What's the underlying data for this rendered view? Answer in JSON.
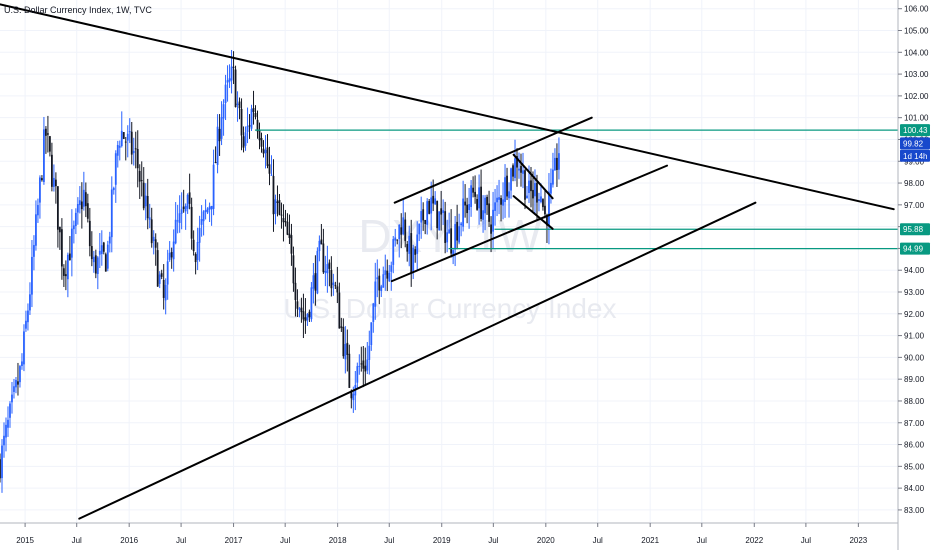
{
  "header": {
    "title": "U.S. Dollar Currency Index, 1W, TVC"
  },
  "watermark": {
    "symbol": "DXY, 1W",
    "name": "U.S. Dollar Currency Index"
  },
  "colors": {
    "candle_up": "#2962ff",
    "candle_down": "#131722",
    "level_line": "#089981",
    "price_badge": "#1848cc",
    "grid": "#f0f3fa",
    "trendline": "#000000"
  },
  "chart_data": {
    "type": "candlestick",
    "title": "U.S. Dollar Currency Index, 1W, TVC",
    "x_tick_labels": [
      "2015",
      "Jul",
      "2016",
      "Jul",
      "2017",
      "Jul",
      "2018",
      "Jul",
      "2019",
      "Jul",
      "2020",
      "Jul",
      "2021",
      "Jul",
      "2022",
      "Jul",
      "2023"
    ],
    "x_ticks": [
      {
        "label": "2015",
        "date": "2015-01-01"
      },
      {
        "label": "Jul",
        "date": "2015-07-01"
      },
      {
        "label": "2016",
        "date": "2016-01-01"
      },
      {
        "label": "Jul",
        "date": "2016-07-01"
      },
      {
        "label": "2017",
        "date": "2017-01-01"
      },
      {
        "label": "Jul",
        "date": "2017-07-01"
      },
      {
        "label": "2018",
        "date": "2018-01-01"
      },
      {
        "label": "Jul",
        "date": "2018-07-01"
      },
      {
        "label": "2019",
        "date": "2019-01-01"
      },
      {
        "label": "Jul",
        "date": "2019-07-01"
      },
      {
        "label": "2020",
        "date": "2020-01-01"
      },
      {
        "label": "Jul",
        "date": "2020-07-01"
      },
      {
        "label": "2021",
        "date": "2021-01-01"
      },
      {
        "label": "Jul",
        "date": "2021-07-01"
      },
      {
        "label": "2022",
        "date": "2022-01-01"
      },
      {
        "label": "Jul",
        "date": "2022-07-01"
      },
      {
        "label": "2023",
        "date": "2023-01-01"
      }
    ],
    "y_tick_labels": [
      "83.00",
      "84.00",
      "85.00",
      "86.00",
      "87.00",
      "88.00",
      "89.00",
      "90.00",
      "91.00",
      "92.00",
      "93.00",
      "94.00",
      "95.00",
      "96.00",
      "97.00",
      "98.00",
      "99.00",
      "100.00",
      "101.00",
      "102.00",
      "103.00",
      "104.00",
      "105.00",
      "106.00"
    ],
    "ylim": [
      82.4,
      106.4
    ],
    "xlim": [
      "2014-10-05",
      "2023-05-20"
    ],
    "price_path": [
      [
        "2014-10-05",
        85.2
      ],
      [
        "2014-11-15",
        87.6
      ],
      [
        "2014-12-20",
        89.6
      ],
      [
        "2015-01-25",
        94.0
      ],
      [
        "2015-03-13",
        100.4
      ],
      [
        "2015-04-20",
        97.2
      ],
      [
        "2015-05-15",
        94.0
      ],
      [
        "2015-06-20",
        95.6
      ],
      [
        "2015-07-25",
        97.6
      ],
      [
        "2015-08-25",
        94.2
      ],
      [
        "2015-10-15",
        94.6
      ],
      [
        "2015-11-20",
        99.6
      ],
      [
        "2015-12-02",
        100.4
      ],
      [
        "2016-01-25",
        99.2
      ],
      [
        "2016-02-25",
        97.0
      ],
      [
        "2016-04-10",
        94.0
      ],
      [
        "2016-05-03",
        92.4
      ],
      [
        "2016-06-01",
        95.6
      ],
      [
        "2016-07-25",
        96.8
      ],
      [
        "2016-08-20",
        95.0
      ],
      [
        "2016-10-15",
        97.4
      ],
      [
        "2016-11-20",
        101.4
      ],
      [
        "2016-12-30",
        103.0
      ],
      [
        "2017-02-05",
        99.6
      ],
      [
        "2017-03-10",
        101.6
      ],
      [
        "2017-04-15",
        100.0
      ],
      [
        "2017-05-20",
        97.2
      ],
      [
        "2017-07-10",
        95.4
      ],
      [
        "2017-08-10",
        93.0
      ],
      [
        "2017-09-08",
        91.6
      ],
      [
        "2017-11-01",
        94.8
      ],
      [
        "2017-12-20",
        93.4
      ],
      [
        "2018-02-15",
        88.6
      ],
      [
        "2018-03-20",
        89.6
      ],
      [
        "2018-04-15",
        89.8
      ],
      [
        "2018-05-20",
        93.6
      ],
      [
        "2018-07-10",
        94.6
      ],
      [
        "2018-08-15",
        96.4
      ],
      [
        "2018-09-20",
        94.2
      ],
      [
        "2018-11-10",
        97.2
      ],
      [
        "2018-12-25",
        96.4
      ],
      [
        "2019-02-01",
        95.4
      ],
      [
        "2019-03-15",
        96.6
      ],
      [
        "2019-04-25",
        97.6
      ],
      [
        "2019-06-20",
        96.2
      ],
      [
        "2019-08-20",
        98.2
      ],
      [
        "2019-09-25",
        99.2
      ],
      [
        "2019-11-01",
        97.4
      ],
      [
        "2019-12-10",
        97.8
      ],
      [
        "2019-12-30",
        96.4
      ],
      [
        "2020-01-25",
        97.8
      ],
      [
        "2020-02-19",
        99.8
      ]
    ],
    "last_price": 99.82,
    "levels": [
      {
        "label": "100.43",
        "value": 100.43,
        "start": "2017-03-17",
        "end": "2023-05-20"
      },
      {
        "label": "95.88",
        "value": 95.88,
        "start": "2019-07-05",
        "end": "2023-05-20"
      },
      {
        "label": "94.99",
        "value": 94.99,
        "start": "2019-01-25",
        "end": "2023-05-20"
      }
    ],
    "trendlines": [
      {
        "name": "resistance",
        "points": [
          [
            "2014-10-05",
            106.2
          ],
          [
            "2023-05-05",
            96.8
          ]
        ]
      },
      {
        "name": "support",
        "points": [
          [
            "2015-07-10",
            82.6
          ],
          [
            "2022-01-05",
            97.1
          ]
        ]
      },
      {
        "name": "channel-upper",
        "points": [
          [
            "2018-07-20",
            97.1
          ],
          [
            "2020-06-10",
            101.0
          ]
        ]
      },
      {
        "name": "channel-lower",
        "points": [
          [
            "2018-07-10",
            93.5
          ],
          [
            "2021-03-01",
            98.8
          ]
        ]
      },
      {
        "name": "flag-upper",
        "points": [
          [
            "2019-09-10",
            99.3
          ],
          [
            "2020-01-25",
            97.3
          ]
        ]
      },
      {
        "name": "flag-lower",
        "points": [
          [
            "2019-09-10",
            97.4
          ],
          [
            "2020-01-25",
            95.9
          ]
        ]
      }
    ],
    "badges": [
      {
        "text": "100.43",
        "value": 100.43,
        "color": "#089981"
      },
      {
        "text": "99.82",
        "value": 99.82,
        "color": "#1848cc"
      },
      {
        "text": "1d 14h",
        "value": 99.25,
        "color": "#1848cc"
      },
      {
        "text": "95.88",
        "value": 95.88,
        "color": "#089981"
      },
      {
        "text": "94.99",
        "value": 94.99,
        "color": "#089981"
      }
    ],
    "grid": true
  }
}
